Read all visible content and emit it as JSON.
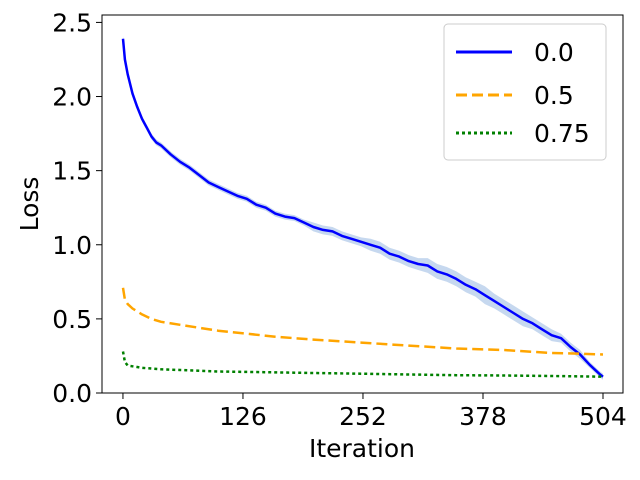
{
  "chart_data": {
    "type": "line",
    "xlabel": "Iteration",
    "ylabel": "Loss",
    "xlim": [
      -22,
      525
    ],
    "ylim": [
      0.0,
      2.55
    ],
    "xticks": [
      0,
      126,
      252,
      378,
      504
    ],
    "xtick_labels": [
      "0",
      "126",
      "252",
      "378",
      "504"
    ],
    "yticks": [
      0.0,
      0.5,
      1.0,
      1.5,
      2.0,
      2.5
    ],
    "ytick_labels": [
      "0.0",
      "0.5",
      "1.0",
      "1.5",
      "2.0",
      "2.5"
    ],
    "grid": false,
    "legend_position": "top-right",
    "series": [
      {
        "name": "0.0",
        "color": "#0000ff",
        "line_style": "solid",
        "band_color": "#aec7e8",
        "x": [
          0,
          2,
          5,
          10,
          15,
          20,
          25,
          30,
          35,
          40,
          50,
          60,
          70,
          80,
          90,
          100,
          110,
          120,
          130,
          140,
          150,
          160,
          170,
          180,
          190,
          200,
          210,
          220,
          230,
          240,
          250,
          260,
          270,
          280,
          290,
          300,
          310,
          320,
          330,
          340,
          350,
          360,
          370,
          380,
          390,
          400,
          410,
          420,
          430,
          440,
          450,
          460,
          470,
          480,
          490,
          500,
          504
        ],
        "y": [
          2.39,
          2.25,
          2.15,
          2.02,
          1.93,
          1.85,
          1.79,
          1.73,
          1.69,
          1.67,
          1.61,
          1.56,
          1.52,
          1.47,
          1.42,
          1.39,
          1.36,
          1.33,
          1.31,
          1.27,
          1.25,
          1.21,
          1.19,
          1.18,
          1.15,
          1.12,
          1.1,
          1.09,
          1.06,
          1.04,
          1.02,
          1.0,
          0.98,
          0.94,
          0.92,
          0.89,
          0.87,
          0.86,
          0.82,
          0.8,
          0.77,
          0.73,
          0.7,
          0.66,
          0.62,
          0.58,
          0.54,
          0.5,
          0.47,
          0.43,
          0.39,
          0.37,
          0.31,
          0.26,
          0.19,
          0.13,
          0.11
        ],
        "band": [
          0.02,
          0.02,
          0.02,
          0.02,
          0.02,
          0.02,
          0.02,
          0.02,
          0.02,
          0.02,
          0.02,
          0.02,
          0.02,
          0.02,
          0.02,
          0.02,
          0.02,
          0.02,
          0.02,
          0.02,
          0.02,
          0.02,
          0.02,
          0.02,
          0.02,
          0.03,
          0.03,
          0.03,
          0.03,
          0.03,
          0.03,
          0.04,
          0.04,
          0.04,
          0.04,
          0.04,
          0.04,
          0.05,
          0.05,
          0.05,
          0.05,
          0.05,
          0.05,
          0.06,
          0.05,
          0.05,
          0.05,
          0.05,
          0.04,
          0.04,
          0.04,
          0.03,
          0.03,
          0.03,
          0.02,
          0.02,
          0.02
        ]
      },
      {
        "name": "0.5",
        "color": "#ffa500",
        "line_style": "dashed",
        "x": [
          0,
          2,
          5,
          10,
          20,
          30,
          40,
          60,
          80,
          100,
          130,
          160,
          200,
          250,
          300,
          350,
          400,
          450,
          480,
          504
        ],
        "y": [
          0.71,
          0.63,
          0.6,
          0.57,
          0.53,
          0.5,
          0.48,
          0.46,
          0.44,
          0.42,
          0.4,
          0.38,
          0.36,
          0.34,
          0.32,
          0.3,
          0.29,
          0.27,
          0.265,
          0.26
        ]
      },
      {
        "name": "0.75",
        "color": "#008000",
        "line_style": "dotted",
        "x": [
          0,
          2,
          5,
          10,
          20,
          40,
          60,
          100,
          150,
          200,
          250,
          300,
          350,
          400,
          450,
          504
        ],
        "y": [
          0.28,
          0.21,
          0.185,
          0.18,
          0.17,
          0.16,
          0.155,
          0.145,
          0.14,
          0.135,
          0.13,
          0.125,
          0.12,
          0.118,
          0.115,
          0.11
        ]
      }
    ]
  }
}
